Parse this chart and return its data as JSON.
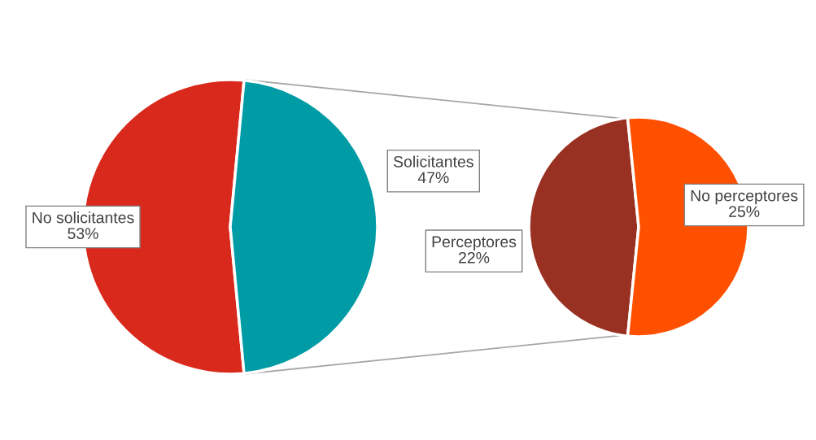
{
  "chart_data": [
    {
      "type": "pie",
      "categories": [
        "No solicitantes",
        "Solicitantes"
      ],
      "values": [
        53,
        47
      ],
      "colors": [
        "#d9291c",
        "#009ca6"
      ],
      "value_labels": [
        "53%",
        "47%"
      ]
    },
    {
      "type": "pie",
      "categories": [
        "Perceptores",
        "No perceptores"
      ],
      "values": [
        22,
        25
      ],
      "colors": [
        "#993122",
        "#ff5000"
      ],
      "value_labels": [
        "22%",
        "25%"
      ]
    }
  ]
}
